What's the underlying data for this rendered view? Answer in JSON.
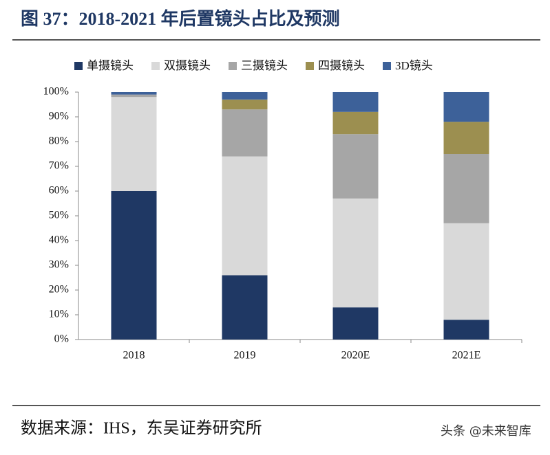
{
  "chart_data": {
    "type": "stacked_bar",
    "title": "图 37：2018-2021 年后置镜头占比及预测",
    "categories": [
      "2018",
      "2019",
      "2020E",
      "2021E"
    ],
    "series": [
      {
        "name": "单摄镜头",
        "color": "#1f3864",
        "values": [
          60,
          26,
          13,
          8
        ]
      },
      {
        "name": "双摄镜头",
        "color": "#d9d9d9",
        "values": [
          38,
          48,
          44,
          39
        ]
      },
      {
        "name": "三摄镜头",
        "color": "#a6a6a6",
        "values": [
          1,
          19,
          26,
          28
        ]
      },
      {
        "name": "四摄镜头",
        "color": "#9c8f50",
        "values": [
          0,
          4,
          9,
          13
        ]
      },
      {
        "name": "3D镜头",
        "color": "#3d6199",
        "values": [
          1,
          3,
          8,
          12
        ]
      }
    ],
    "ylim": [
      0,
      100
    ],
    "yticks": [
      {
        "value": 0,
        "label": "0%"
      },
      {
        "value": 10,
        "label": "10%"
      },
      {
        "value": 20,
        "label": "20%"
      },
      {
        "value": 30,
        "label": "30%"
      },
      {
        "value": 40,
        "label": "40%"
      },
      {
        "value": 50,
        "label": "50%"
      },
      {
        "value": 60,
        "label": "60%"
      },
      {
        "value": 70,
        "label": "70%"
      },
      {
        "value": 80,
        "label": "80%"
      },
      {
        "value": 90,
        "label": "90%"
      },
      {
        "value": 100,
        "label": "100%"
      }
    ],
    "source": "数据来源：IHS，东吴证券研究所",
    "watermark": "头条 @未来智库"
  }
}
